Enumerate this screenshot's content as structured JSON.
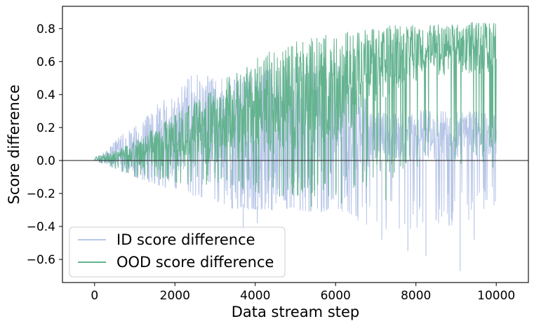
{
  "chart_data": {
    "type": "line",
    "title": "",
    "xlabel": "Data stream step",
    "ylabel": "Score difference",
    "xlim": [
      -800,
      10800
    ],
    "ylim": [
      -0.74,
      0.935
    ],
    "xticks": [
      0,
      2000,
      4000,
      6000,
      8000,
      10000
    ],
    "xtick_labels": [
      "0",
      "2000",
      "4000",
      "6000",
      "8000",
      "10000"
    ],
    "yticks": [
      -0.6,
      -0.4,
      -0.2,
      0.0,
      0.2,
      0.4,
      0.6,
      0.8
    ],
    "ytick_labels": [
      "−0.6",
      "−0.4",
      "−0.2",
      "0.0",
      "0.2",
      "0.4",
      "0.6",
      "0.8"
    ],
    "grid": false,
    "reference_line": {
      "y": 0.0,
      "color": "#333333"
    },
    "legend_position": "lower-left",
    "series": [
      {
        "name": "ID score difference",
        "color": "#b8c6e8",
        "envelope": {
          "x": [
            0,
            500,
            1000,
            1500,
            2000,
            2500,
            3000,
            3500,
            4000,
            4500,
            5000,
            5500,
            6000,
            6500,
            6800,
            7000,
            7500,
            8000,
            8500,
            9000,
            9500,
            10000
          ],
          "upper": [
            0.0,
            0.12,
            0.22,
            0.33,
            0.45,
            0.53,
            0.5,
            0.5,
            0.56,
            0.57,
            0.58,
            0.6,
            0.6,
            0.5,
            0.35,
            0.3,
            0.3,
            0.32,
            0.3,
            0.3,
            0.3,
            0.28
          ],
          "lower": [
            0.0,
            -0.05,
            -0.1,
            -0.12,
            -0.14,
            -0.18,
            -0.22,
            -0.25,
            -0.28,
            -0.28,
            -0.25,
            -0.25,
            -0.25,
            -0.2,
            -0.05,
            0.0,
            0.0,
            0.0,
            0.0,
            0.0,
            0.0,
            0.0
          ],
          "neg": [
            0.0,
            -0.05,
            -0.1,
            -0.15,
            -0.18,
            -0.22,
            -0.25,
            -0.3,
            -0.3,
            -0.3,
            -0.3,
            -0.32,
            -0.3,
            -0.4,
            -0.4,
            -0.4,
            -0.45,
            -0.45,
            -0.4,
            -0.4,
            -0.35,
            -0.3
          ]
        },
        "extremes": [
          {
            "x": 3700,
            "y": -0.42
          },
          {
            "x": 4050,
            "y": -0.38
          },
          {
            "x": 7150,
            "y": -0.48
          },
          {
            "x": 7800,
            "y": -0.55
          },
          {
            "x": 8250,
            "y": -0.58
          },
          {
            "x": 9100,
            "y": -0.67
          },
          {
            "x": 9450,
            "y": -0.48
          }
        ]
      },
      {
        "name": "OOD score difference",
        "color": "#64b38f",
        "envelope": {
          "x": [
            0,
            500,
            1000,
            1500,
            2000,
            2500,
            3000,
            3500,
            4000,
            4500,
            5000,
            5500,
            6000,
            6500,
            7000,
            7500,
            8000,
            8500,
            9000,
            9500,
            10000
          ],
          "upper": [
            0.02,
            0.06,
            0.12,
            0.2,
            0.28,
            0.36,
            0.44,
            0.55,
            0.62,
            0.68,
            0.72,
            0.76,
            0.78,
            0.8,
            0.82,
            0.82,
            0.83,
            0.83,
            0.84,
            0.84,
            0.84
          ],
          "lower": [
            0.0,
            -0.02,
            -0.05,
            -0.06,
            -0.06,
            -0.04,
            -0.02,
            0.0,
            0.02,
            0.04,
            0.06,
            0.1,
            0.12,
            0.2,
            0.35,
            0.42,
            0.48,
            0.5,
            0.52,
            0.52,
            0.52
          ],
          "neg": [
            0.0,
            -0.05,
            -0.1,
            -0.12,
            -0.14,
            -0.15,
            -0.15,
            -0.18,
            -0.2,
            -0.22,
            -0.22,
            -0.22,
            -0.22,
            -0.2,
            -0.15,
            -0.1,
            -0.08,
            -0.05,
            -0.05,
            -0.05,
            -0.05
          ]
        },
        "extremes": [
          {
            "x": 5400,
            "y": -0.28
          },
          {
            "x": 6150,
            "y": -0.26
          },
          {
            "x": 7250,
            "y": -0.24
          }
        ]
      }
    ]
  }
}
